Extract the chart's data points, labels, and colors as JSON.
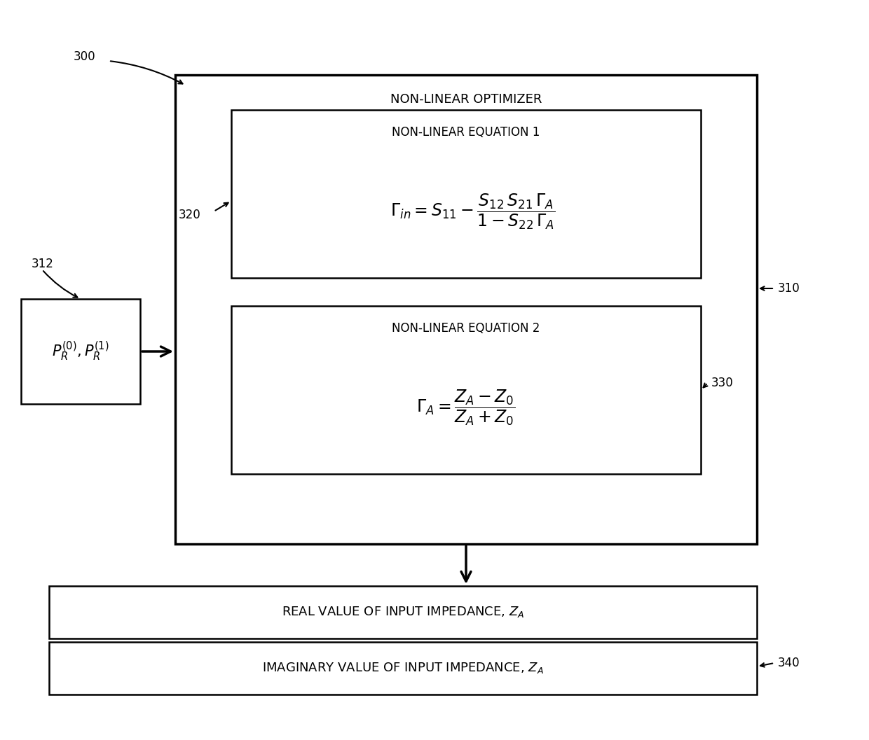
{
  "bg_color": "#ffffff",
  "line_color": "#000000",
  "label_300": "300",
  "label_310": "310",
  "label_312": "312",
  "label_320": "320",
  "label_330": "330",
  "label_340": "340",
  "title_optimizer": "NON-LINEAR OPTIMIZER",
  "title_eq1": "NON-LINEAR EQUATION 1",
  "title_eq2": "NON-LINEAR EQUATION 2",
  "label_real": "REAL VALUE OF INPUT IMPEDANCE, $Z_A$",
  "label_imag": "IMAGINARY VALUE OF INPUT IMPEDANCE, $Z_A$",
  "font_size_title": 13,
  "font_size_label": 12,
  "font_size_eq": 14,
  "font_size_ref": 12
}
